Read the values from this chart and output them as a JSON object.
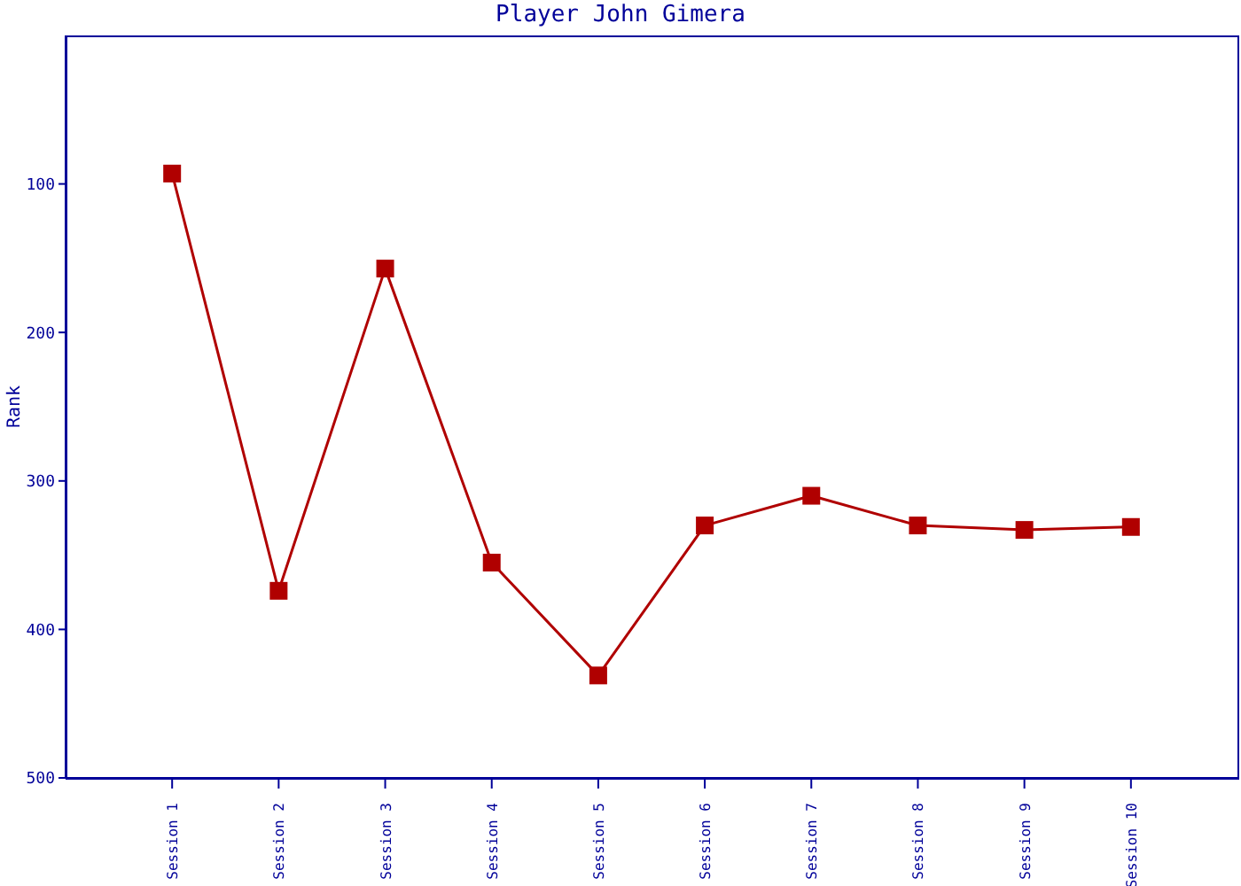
{
  "chart_data": {
    "type": "line",
    "title": "Player John Gimera",
    "ylabel": "Rank",
    "categories": [
      "Session 1",
      "Session 2",
      "Session 3",
      "Session 4",
      "Session 5",
      "Session 6",
      "Session 7",
      "Session 8",
      "Session 9",
      "Session 10"
    ],
    "series": [
      {
        "color": "#b00000",
        "values": [
          93,
          374,
          157,
          355,
          431,
          330,
          310,
          330,
          333,
          331
        ]
      }
    ],
    "ylim": [
      500,
      0
    ],
    "yticks": [
      100,
      200,
      300,
      400,
      500
    ],
    "marker": "square",
    "line_style": "solid"
  }
}
